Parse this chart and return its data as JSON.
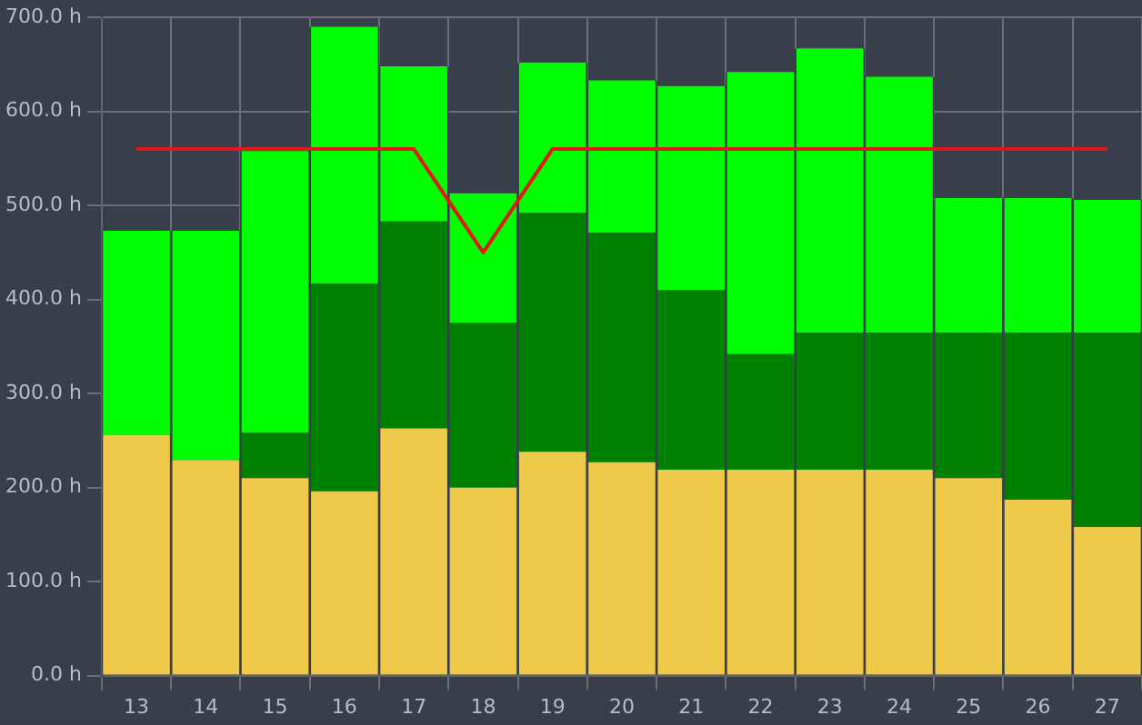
{
  "chart_data": {
    "type": "bar",
    "stacked": true,
    "categories": [
      "13",
      "14",
      "15",
      "16",
      "17",
      "18",
      "19",
      "20",
      "21",
      "22",
      "23",
      "24",
      "25",
      "26",
      "27"
    ],
    "series": [
      {
        "color": "#efca4a",
        "values": [
          256,
          229,
          210,
          196,
          263,
          200,
          238,
          227,
          219,
          219,
          219,
          219,
          210,
          187,
          158
        ]
      },
      {
        "color": "#008000",
        "values": [
          0,
          0,
          48,
          221,
          220,
          175,
          254,
          244,
          191,
          123,
          146,
          146,
          155,
          178,
          207
        ]
      },
      {
        "color": "#00ff00",
        "values": [
          217,
          244,
          300,
          273,
          165,
          138,
          160,
          162,
          217,
          300,
          302,
          272,
          143,
          143,
          141
        ]
      },
      {
        "type": "line",
        "color": "#e01818",
        "marker": "none",
        "values": [
          560,
          560,
          560,
          560,
          560,
          450,
          560,
          560,
          560,
          560,
          560,
          560,
          560,
          560,
          560
        ]
      }
    ],
    "ylim": [
      0,
      700
    ],
    "yticks": [
      {
        "value": 0,
        "label": "0.0 h"
      },
      {
        "value": 100,
        "label": "100.0 h"
      },
      {
        "value": 200,
        "label": "200.0 h"
      },
      {
        "value": 300,
        "label": "300.0 h"
      },
      {
        "value": 400,
        "label": "400.0 h"
      },
      {
        "value": 500,
        "label": "500.0 h"
      },
      {
        "value": 600,
        "label": "600.0 h"
      },
      {
        "value": 700,
        "label": "700.0 h"
      }
    ],
    "grid": true,
    "legend": false
  }
}
